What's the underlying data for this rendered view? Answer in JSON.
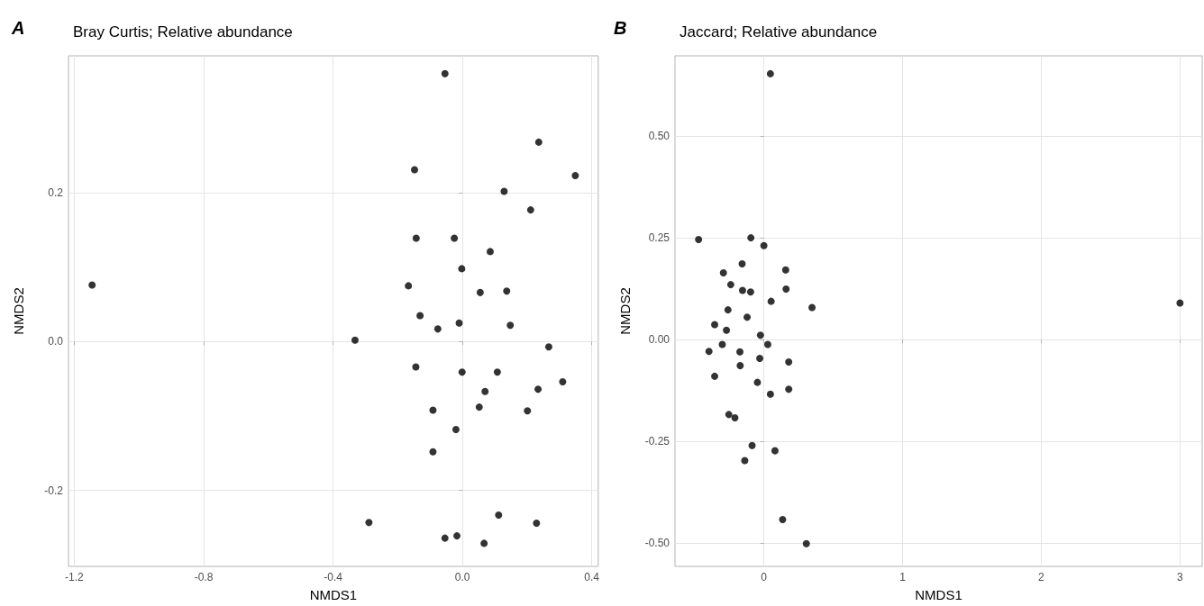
{
  "chart_data": [
    {
      "type": "scatter",
      "title": "Bray Curtis; Relative abundance",
      "annotations": [
        "A"
      ],
      "xlabel": "NMDS1",
      "ylabel": "NMDS2",
      "color": "#000000",
      "marker": "circle",
      "grid": true,
      "x": [
        -0.054,
        0.236,
        -0.148,
        0.349,
        0.129,
        0.211,
        -0.143,
        -0.025,
        0.086,
        -0.002,
        -1.145,
        -0.167,
        0.055,
        0.137,
        -0.131,
        -0.076,
        -0.01,
        0.148,
        -0.332,
        0.267,
        -0.144,
        -0.001,
        0.108,
        0.31,
        0.07,
        0.234,
        -0.091,
        0.052,
        0.201,
        -0.02,
        -0.091,
        -0.289,
        0.112,
        0.229,
        -0.054,
        -0.017,
        0.067
      ],
      "values": [
        0.36,
        0.268,
        0.231,
        0.223,
        0.202,
        0.177,
        0.139,
        0.139,
        0.121,
        0.098,
        0.076,
        0.075,
        0.066,
        0.068,
        0.035,
        0.017,
        0.025,
        0.022,
        0.002,
        -0.007,
        -0.034,
        -0.041,
        -0.041,
        -0.054,
        -0.067,
        -0.064,
        -0.092,
        -0.088,
        -0.093,
        -0.118,
        -0.148,
        -0.243,
        -0.233,
        -0.244,
        -0.264,
        -0.261,
        -0.271
      ],
      "xlim": [
        -1.218,
        0.42
      ],
      "ylim": [
        -0.302,
        0.384
      ],
      "xticks": [
        -1.2,
        -0.8,
        -0.4,
        {
          "value": 0,
          "label": "0.0"
        },
        0.4
      ],
      "yticks": [
        -0.2,
        {
          "value": 0,
          "label": "0.0"
        },
        0.2
      ]
    },
    {
      "type": "scatter",
      "title": "Jaccard; Relative abundance",
      "annotations": [
        "B"
      ],
      "xlabel": "NMDS1",
      "ylabel": "NMDS2",
      "color": "#000000",
      "marker": "circle",
      "grid": true,
      "x": [
        0.047,
        -0.471,
        -0.094,
        0.0,
        -0.157,
        -0.292,
        0.157,
        -0.239,
        -0.154,
        -0.096,
        0.16,
        0.052,
        0.347,
        3.0,
        -0.259,
        -0.121,
        -0.355,
        -0.27,
        -0.025,
        -0.396,
        -0.3,
        -0.173,
        0.028,
        -0.03,
        0.179,
        -0.171,
        -0.355,
        -0.047,
        0.179,
        0.047,
        -0.253,
        -0.209,
        -0.085,
        0.08,
        -0.138,
        0.135,
        0.306
      ],
      "values": [
        0.653,
        0.246,
        0.25,
        0.231,
        0.186,
        0.164,
        0.171,
        0.135,
        0.121,
        0.117,
        0.124,
        0.094,
        0.079,
        0.09,
        0.073,
        0.055,
        0.037,
        0.023,
        0.011,
        -0.029,
        -0.012,
        -0.03,
        -0.012,
        -0.046,
        -0.055,
        -0.064,
        -0.09,
        -0.105,
        -0.122,
        -0.134,
        -0.184,
        -0.192,
        -0.26,
        -0.273,
        -0.297,
        -0.442,
        -0.501
      ],
      "xlim": [
        -0.641,
        3.16
      ],
      "ylim": [
        -0.557,
        0.697
      ],
      "xticks": [
        0,
        1,
        2,
        3
      ],
      "yticks": [
        {
          "value": -0.5,
          "label": "-0.50"
        },
        {
          "value": -0.25,
          "label": "-0.25"
        },
        {
          "value": 0,
          "label": "0.00"
        },
        {
          "value": 0.25,
          "label": "0.25"
        },
        {
          "value": 0.5,
          "label": "0.50"
        }
      ]
    }
  ]
}
